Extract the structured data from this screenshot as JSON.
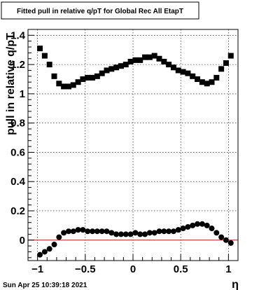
{
  "chart_data": {
    "type": "scatter",
    "title": "Fitted pull in relative q/pT for Global Rec All EtapT",
    "xlabel": "η",
    "ylabel": "pull in relative q/pT",
    "xlim": [
      -1.1,
      1.1
    ],
    "ylim": [
      -0.14,
      1.44
    ],
    "x_ticks": [
      -1,
      -0.5,
      0,
      0.5,
      1
    ],
    "x_tick_labels": [
      "−1",
      "−0.5",
      "0",
      "0.5",
      "1"
    ],
    "y_ticks": [
      0,
      0.2,
      0.4,
      0.6,
      0.8,
      1,
      1.2,
      1.4
    ],
    "y_tick_labels": [
      "0",
      "0.2",
      "0.4",
      "0.6",
      "0.8",
      "1",
      "1.2",
      "1.4"
    ],
    "grid": true,
    "reference_line": {
      "y": 0,
      "color": "#e00000"
    },
    "series": [
      {
        "marker": "square",
        "x": [
          -0.975,
          -0.925,
          -0.875,
          -0.825,
          -0.775,
          -0.725,
          -0.675,
          -0.625,
          -0.575,
          -0.525,
          -0.475,
          -0.425,
          -0.375,
          -0.325,
          -0.275,
          -0.225,
          -0.175,
          -0.125,
          -0.075,
          -0.025,
          0.025,
          0.075,
          0.125,
          0.175,
          0.225,
          0.275,
          0.325,
          0.375,
          0.425,
          0.475,
          0.525,
          0.575,
          0.625,
          0.675,
          0.725,
          0.775,
          0.825,
          0.875,
          0.925,
          0.975,
          1.025
        ],
        "y": [
          1.31,
          1.26,
          1.2,
          1.12,
          1.07,
          1.05,
          1.05,
          1.06,
          1.08,
          1.1,
          1.11,
          1.11,
          1.12,
          1.14,
          1.16,
          1.17,
          1.18,
          1.19,
          1.2,
          1.22,
          1.23,
          1.23,
          1.25,
          1.25,
          1.26,
          1.24,
          1.22,
          1.2,
          1.18,
          1.16,
          1.15,
          1.14,
          1.12,
          1.1,
          1.08,
          1.07,
          1.08,
          1.11,
          1.17,
          1.21,
          1.26
        ]
      },
      {
        "marker": "circle",
        "x": [
          -0.975,
          -0.925,
          -0.875,
          -0.825,
          -0.775,
          -0.725,
          -0.675,
          -0.625,
          -0.575,
          -0.525,
          -0.475,
          -0.425,
          -0.375,
          -0.325,
          -0.275,
          -0.225,
          -0.175,
          -0.125,
          -0.075,
          -0.025,
          0.025,
          0.075,
          0.125,
          0.175,
          0.225,
          0.275,
          0.325,
          0.375,
          0.425,
          0.475,
          0.525,
          0.575,
          0.625,
          0.675,
          0.725,
          0.775,
          0.825,
          0.875,
          0.925,
          0.975,
          1.025
        ],
        "y": [
          -0.1,
          -0.08,
          -0.06,
          -0.03,
          0.02,
          0.05,
          0.06,
          0.06,
          0.07,
          0.07,
          0.06,
          0.06,
          0.06,
          0.06,
          0.06,
          0.05,
          0.04,
          0.04,
          0.04,
          0.04,
          0.05,
          0.04,
          0.04,
          0.05,
          0.05,
          0.06,
          0.06,
          0.06,
          0.06,
          0.07,
          0.08,
          0.09,
          0.1,
          0.11,
          0.11,
          0.1,
          0.08,
          0.05,
          0.02,
          0.0,
          -0.02
        ]
      }
    ]
  },
  "footer": {
    "timestamp": "Sun Apr 25 10:39:18 2021"
  },
  "colors": {
    "marker": "#000000",
    "frame": "#000000",
    "grid": "#000000",
    "reference_line": "#e00000",
    "background": "#ffffff"
  }
}
